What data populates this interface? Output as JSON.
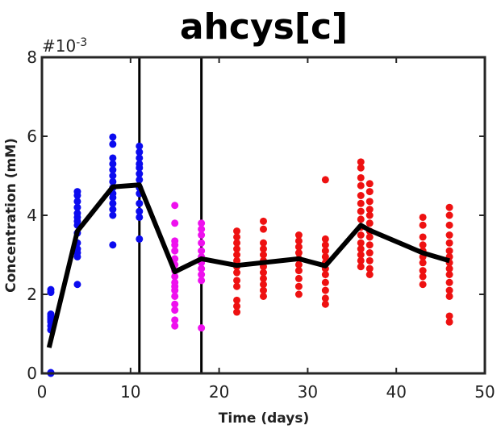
{
  "chart_data": {
    "type": "scatter",
    "title": "ahcys[c]",
    "xlabel": "Time (days)",
    "ylabel": "Concentration (mM)",
    "y_multiplier_label": "#10",
    "y_multiplier_exp": "-3",
    "xlim": [
      0,
      50
    ],
    "ylim": [
      0,
      8
    ],
    "x_ticks": [
      "0",
      "10",
      "20",
      "30",
      "40",
      "50"
    ],
    "y_ticks": [
      "0",
      "2",
      "4",
      "6",
      "8"
    ],
    "grid": false,
    "vertical_lines": [
      11,
      18
    ],
    "series": [
      {
        "color": "#0b0bef",
        "points": [
          [
            1,
            0
          ],
          [
            1,
            0.02
          ],
          [
            1,
            1.1
          ],
          [
            1,
            1.2
          ],
          [
            1,
            1.3
          ],
          [
            1,
            1.35
          ],
          [
            1,
            1.4
          ],
          [
            1,
            1.45
          ],
          [
            1,
            1.5
          ],
          [
            1,
            2.05
          ],
          [
            1,
            2.12
          ],
          [
            4,
            2.25
          ],
          [
            4,
            2.95
          ],
          [
            4,
            3.05
          ],
          [
            4,
            3.15
          ],
          [
            4,
            3.3
          ],
          [
            4,
            3.55
          ],
          [
            4,
            3.75
          ],
          [
            4,
            3.85
          ],
          [
            4,
            3.95
          ],
          [
            4,
            4.05
          ],
          [
            4,
            4.2
          ],
          [
            4,
            4.35
          ],
          [
            4,
            4.5
          ],
          [
            4,
            4.6
          ],
          [
            8,
            3.25
          ],
          [
            8,
            4.0
          ],
          [
            8,
            4.15
          ],
          [
            8,
            4.3
          ],
          [
            8,
            4.45
          ],
          [
            8,
            4.55
          ],
          [
            8,
            4.7
          ],
          [
            8,
            4.85
          ],
          [
            8,
            5.0
          ],
          [
            8,
            5.15
          ],
          [
            8,
            5.3
          ],
          [
            8,
            5.45
          ],
          [
            8,
            5.8
          ],
          [
            8,
            5.98
          ],
          [
            11,
            3.4
          ],
          [
            11,
            3.95
          ],
          [
            11,
            4.1
          ],
          [
            11,
            4.3
          ],
          [
            11,
            4.55
          ],
          [
            11,
            4.7
          ],
          [
            11,
            4.9
          ],
          [
            11,
            5.05
          ],
          [
            11,
            5.2
          ],
          [
            11,
            5.3
          ],
          [
            11,
            5.45
          ],
          [
            11,
            5.6
          ],
          [
            11,
            5.75
          ]
        ]
      },
      {
        "color": "#ee11ee",
        "points": [
          [
            15,
            1.2
          ],
          [
            15,
            1.35
          ],
          [
            15,
            1.6
          ],
          [
            15,
            1.75
          ],
          [
            15,
            1.95
          ],
          [
            15,
            2.1
          ],
          [
            15,
            2.2
          ],
          [
            15,
            2.3
          ],
          [
            15,
            2.45
          ],
          [
            15,
            2.6
          ],
          [
            15,
            2.75
          ],
          [
            15,
            2.9
          ],
          [
            15,
            3.1
          ],
          [
            15,
            3.25
          ],
          [
            15,
            3.35
          ],
          [
            15,
            3.8
          ],
          [
            15,
            4.25
          ],
          [
            18,
            1.15
          ],
          [
            18,
            2.35
          ],
          [
            18,
            2.5
          ],
          [
            18,
            2.65
          ],
          [
            18,
            2.8
          ],
          [
            18,
            2.95
          ],
          [
            18,
            3.1
          ],
          [
            18,
            3.3
          ],
          [
            18,
            3.5
          ],
          [
            18,
            3.65
          ],
          [
            18,
            3.8
          ]
        ]
      },
      {
        "color": "#ee1111",
        "points": [
          [
            22,
            1.55
          ],
          [
            22,
            1.7
          ],
          [
            22,
            1.85
          ],
          [
            22,
            2.2
          ],
          [
            22,
            2.35
          ],
          [
            22,
            2.55
          ],
          [
            22,
            2.7
          ],
          [
            22,
            2.85
          ],
          [
            22,
            3.0
          ],
          [
            22,
            3.15
          ],
          [
            22,
            3.3
          ],
          [
            22,
            3.45
          ],
          [
            22,
            3.6
          ],
          [
            25,
            1.95
          ],
          [
            25,
            2.1
          ],
          [
            25,
            2.25
          ],
          [
            25,
            2.4
          ],
          [
            25,
            2.55
          ],
          [
            25,
            2.7
          ],
          [
            25,
            2.85
          ],
          [
            25,
            3.0
          ],
          [
            25,
            3.15
          ],
          [
            25,
            3.3
          ],
          [
            25,
            3.65
          ],
          [
            25,
            3.85
          ],
          [
            29,
            2.0
          ],
          [
            29,
            2.2
          ],
          [
            29,
            2.4
          ],
          [
            29,
            2.6
          ],
          [
            29,
            2.75
          ],
          [
            29,
            2.9
          ],
          [
            29,
            3.05
          ],
          [
            29,
            3.2
          ],
          [
            29,
            3.35
          ],
          [
            29,
            3.5
          ],
          [
            32,
            1.75
          ],
          [
            32,
            1.9
          ],
          [
            32,
            2.1
          ],
          [
            32,
            2.3
          ],
          [
            32,
            2.5
          ],
          [
            32,
            2.65
          ],
          [
            32,
            2.8
          ],
          [
            32,
            2.95
          ],
          [
            32,
            3.1
          ],
          [
            32,
            3.25
          ],
          [
            32,
            3.4
          ],
          [
            32,
            4.9
          ],
          [
            36,
            2.7
          ],
          [
            36,
            2.85
          ],
          [
            36,
            3.0
          ],
          [
            36,
            3.15
          ],
          [
            36,
            3.3
          ],
          [
            36,
            3.5
          ],
          [
            36,
            3.7
          ],
          [
            36,
            3.9
          ],
          [
            36,
            4.1
          ],
          [
            36,
            4.3
          ],
          [
            36,
            4.5
          ],
          [
            36,
            4.75
          ],
          [
            36,
            4.95
          ],
          [
            36,
            5.2
          ],
          [
            36,
            5.35
          ],
          [
            37,
            2.5
          ],
          [
            37,
            2.65
          ],
          [
            37,
            2.85
          ],
          [
            37,
            3.05
          ],
          [
            37,
            3.25
          ],
          [
            37,
            3.45
          ],
          [
            37,
            3.6
          ],
          [
            37,
            3.8
          ],
          [
            37,
            4.0
          ],
          [
            37,
            4.15
          ],
          [
            37,
            4.35
          ],
          [
            37,
            4.6
          ],
          [
            37,
            4.8
          ],
          [
            43,
            2.25
          ],
          [
            43,
            2.45
          ],
          [
            43,
            2.6
          ],
          [
            43,
            2.8
          ],
          [
            43,
            2.95
          ],
          [
            43,
            3.1
          ],
          [
            43,
            3.25
          ],
          [
            43,
            3.45
          ],
          [
            43,
            3.75
          ],
          [
            43,
            3.95
          ],
          [
            46,
            1.3
          ],
          [
            46,
            1.45
          ],
          [
            46,
            1.95
          ],
          [
            46,
            2.1
          ],
          [
            46,
            2.3
          ],
          [
            46,
            2.5
          ],
          [
            46,
            2.65
          ],
          [
            46,
            2.8
          ],
          [
            46,
            2.95
          ],
          [
            46,
            3.1
          ],
          [
            46,
            3.3
          ],
          [
            46,
            3.5
          ],
          [
            46,
            3.75
          ],
          [
            46,
            4.0
          ],
          [
            46,
            4.2
          ]
        ]
      }
    ],
    "mean_line": {
      "color": "#000000",
      "points": [
        [
          0.8,
          0.65
        ],
        [
          4,
          3.6
        ],
        [
          8,
          4.72
        ],
        [
          11,
          4.77
        ],
        [
          15,
          2.57
        ],
        [
          18,
          2.9
        ],
        [
          22,
          2.73
        ],
        [
          29,
          2.9
        ],
        [
          32,
          2.72
        ],
        [
          36,
          3.75
        ],
        [
          37,
          3.62
        ],
        [
          43,
          3.05
        ],
        [
          46,
          2.85
        ]
      ]
    }
  }
}
